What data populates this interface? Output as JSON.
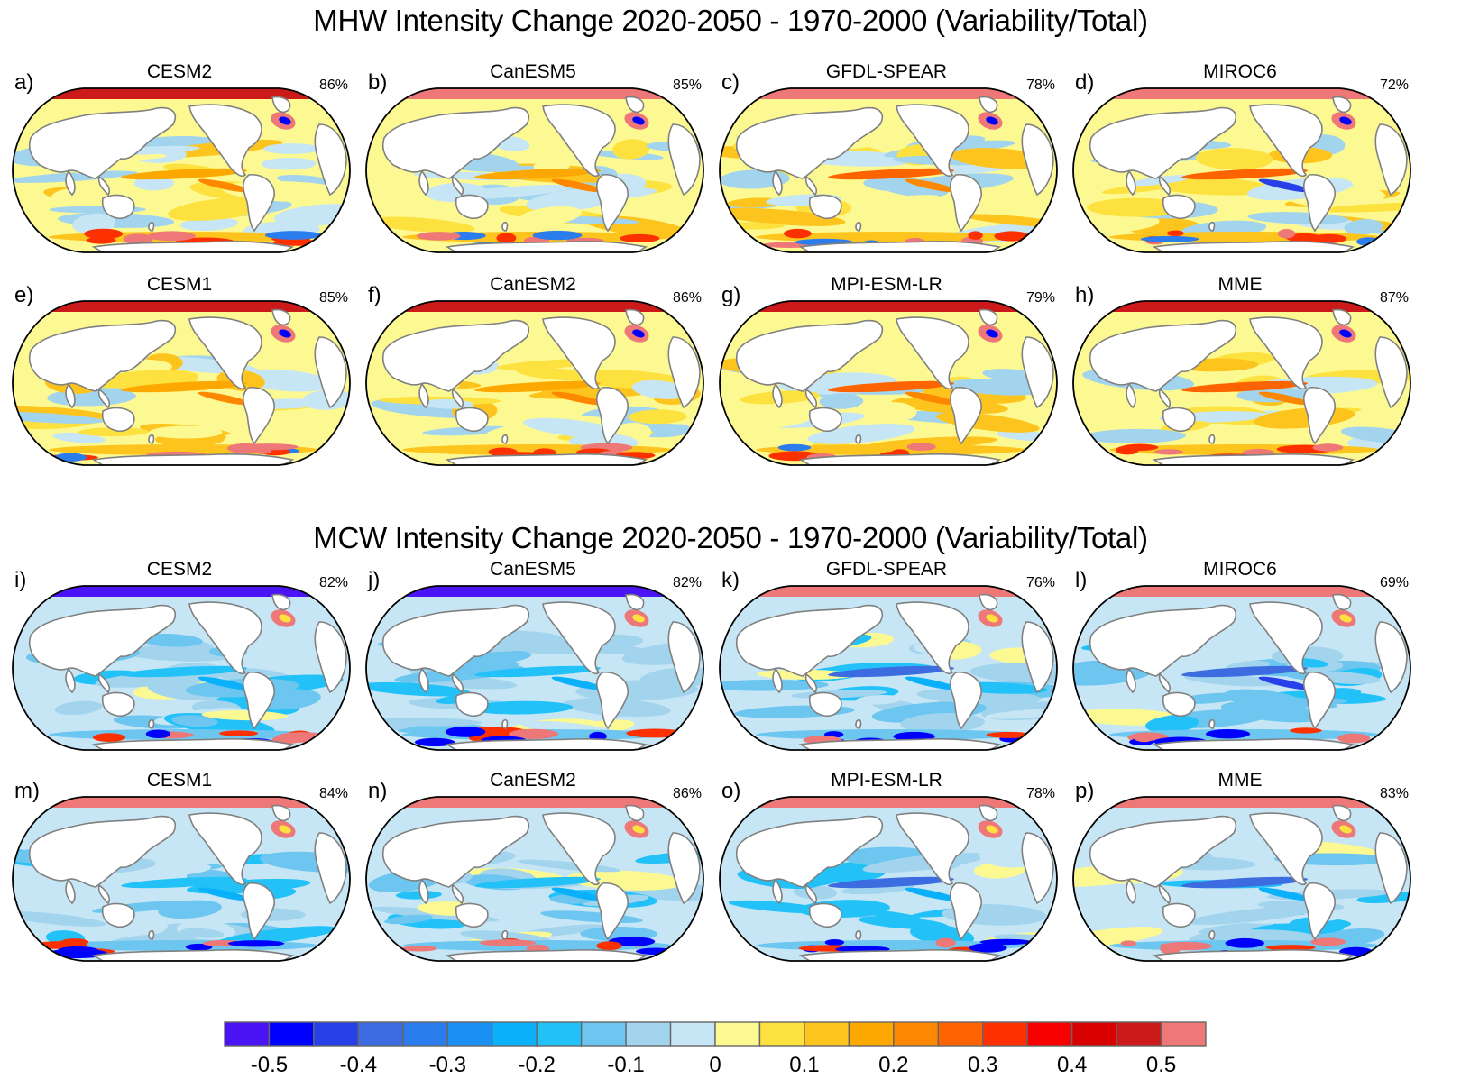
{
  "chart_data": {
    "type": "heatmap",
    "projection": "Robinson (Pacific-centered) global ocean maps",
    "sections": [
      {
        "title": "MHW Intensity Change 2020-2050 - 1970-2000 (Variability/Total)",
        "panels": [
          {
            "label": "a)",
            "model": "CESM2",
            "percent": "86%"
          },
          {
            "label": "b)",
            "model": "CanESM5",
            "percent": "85%"
          },
          {
            "label": "c)",
            "model": "GFDL-SPEAR",
            "percent": "78%"
          },
          {
            "label": "d)",
            "model": "MIROC6",
            "percent": "72%"
          },
          {
            "label": "e)",
            "model": "CESM1",
            "percent": "85%"
          },
          {
            "label": "f)",
            "model": "CanESM2",
            "percent": "86%"
          },
          {
            "label": "g)",
            "model": "MPI-ESM-LR",
            "percent": "79%"
          },
          {
            "label": "h)",
            "model": "MME",
            "percent": "87%"
          }
        ]
      },
      {
        "title": "MCW Intensity Change 2020-2050 - 1970-2000 (Variability/Total)",
        "panels": [
          {
            "label": "i)",
            "model": "CESM2",
            "percent": "82%"
          },
          {
            "label": "j)",
            "model": "CanESM5",
            "percent": "82%"
          },
          {
            "label": "k)",
            "model": "GFDL-SPEAR",
            "percent": "76%"
          },
          {
            "label": "l)",
            "model": "MIROC6",
            "percent": "69%"
          },
          {
            "label": "m)",
            "model": "CESM1",
            "percent": "84%"
          },
          {
            "label": "n)",
            "model": "CanESM2",
            "percent": "86%"
          },
          {
            "label": "o)",
            "model": "MPI-ESM-LR",
            "percent": "78%"
          },
          {
            "label": "p)",
            "model": "MME",
            "percent": "83%"
          }
        ]
      }
    ],
    "colorbar": {
      "levels": [
        -0.55,
        -0.5,
        -0.45,
        -0.4,
        -0.35,
        -0.3,
        -0.25,
        -0.2,
        -0.15,
        -0.1,
        -0.05,
        0,
        0.05,
        0.1,
        0.15,
        0.2,
        0.25,
        0.3,
        0.35,
        0.4,
        0.45,
        0.5,
        0.55
      ],
      "colors": [
        "#4b14f5",
        "#0000fe",
        "#2840e8",
        "#3d6ce0",
        "#2b7ced",
        "#1a90f5",
        "#0bb0fa",
        "#22c2f8",
        "#6cc6ef",
        "#a3d4ee",
        "#c6e6f5",
        "#fdf992",
        "#fde13f",
        "#fdc41e",
        "#fda800",
        "#fd8800",
        "#fd6400",
        "#fd3000",
        "#f80000",
        "#d80000",
        "#cc1a1a",
        "#ee7777"
      ],
      "tick_labels": [
        "-0.5",
        "-0.4",
        "-0.3",
        "-0.2",
        "-0.1",
        "0",
        "0.1",
        "0.2",
        "0.3",
        "0.4",
        "0.5"
      ],
      "tick_values": [
        -0.5,
        -0.4,
        -0.3,
        -0.2,
        -0.1,
        0,
        0.1,
        0.2,
        0.3,
        0.4,
        0.5
      ]
    }
  }
}
